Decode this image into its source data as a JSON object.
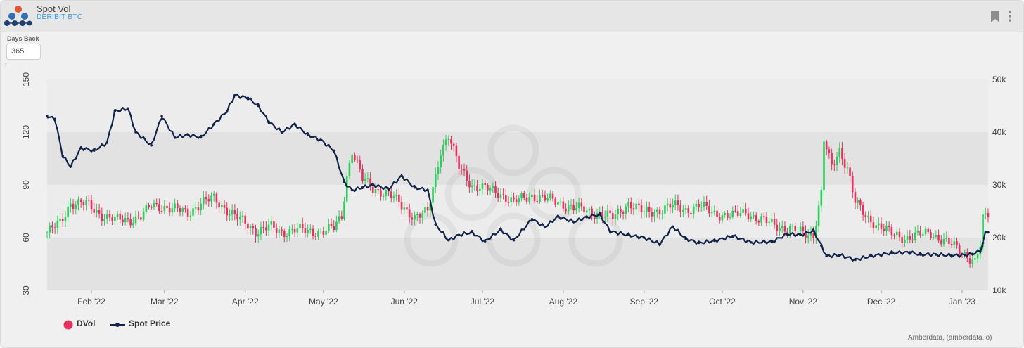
{
  "header": {
    "title": "Spot Vol",
    "subtitle": "DERIBIT BTC"
  },
  "params": {
    "days_back_label": "Days Back",
    "days_back_value": "365"
  },
  "legend": {
    "dvol_label": "DVol",
    "spot_label": "Spot Price"
  },
  "credit": "Amberdata, (amberdata.io)",
  "colors": {
    "up": "#2ecc5a",
    "down": "#e8305e",
    "spot": "#13244a",
    "band": "#e2e2e2",
    "plot_bg": "#ececec"
  },
  "chart_data": {
    "type": "line",
    "left_axis": {
      "ticks": [
        "30",
        "60",
        "90",
        "120",
        "150"
      ],
      "range": [
        30,
        150
      ],
      "series": "DVol"
    },
    "right_axis": {
      "ticks": [
        "10k",
        "20k",
        "30k",
        "40k",
        "50k"
      ],
      "range": [
        10000,
        50000
      ],
      "series": "Spot Price"
    },
    "x_axis": {
      "ticks": [
        "Feb '22",
        "Mar '22",
        "Apr '22",
        "May '22",
        "Jun '22",
        "Jul '22",
        "Aug '22",
        "Sep '22",
        "Oct '22",
        "Nov '22",
        "Dec '22",
        "Jan '23"
      ],
      "range": [
        "2022-01-15",
        "2023-01-11"
      ]
    },
    "series": [
      {
        "name": "Spot Price",
        "kind": "line",
        "points": [
          [
            "2022-01-15",
            43000
          ],
          [
            "2022-01-18",
            42500
          ],
          [
            "2022-01-21",
            35500
          ],
          [
            "2022-01-24",
            33500
          ],
          [
            "2022-01-28",
            37000
          ],
          [
            "2022-02-02",
            36500
          ],
          [
            "2022-02-07",
            38000
          ],
          [
            "2022-02-10",
            44000
          ],
          [
            "2022-02-15",
            44500
          ],
          [
            "2022-02-18",
            40000
          ],
          [
            "2022-02-24",
            37500
          ],
          [
            "2022-02-28",
            43000
          ],
          [
            "2022-03-05",
            39000
          ],
          [
            "2022-03-10",
            39500
          ],
          [
            "2022-03-15",
            39000
          ],
          [
            "2022-03-20",
            41500
          ],
          [
            "2022-03-25",
            44000
          ],
          [
            "2022-03-28",
            47000
          ],
          [
            "2022-04-02",
            46500
          ],
          [
            "2022-04-06",
            45000
          ],
          [
            "2022-04-10",
            42000
          ],
          [
            "2022-04-15",
            40000
          ],
          [
            "2022-04-20",
            41500
          ],
          [
            "2022-04-25",
            39500
          ],
          [
            "2022-04-30",
            38500
          ],
          [
            "2022-05-05",
            36500
          ],
          [
            "2022-05-09",
            30500
          ],
          [
            "2022-05-12",
            29000
          ],
          [
            "2022-05-16",
            29500
          ],
          [
            "2022-05-20",
            30000
          ],
          [
            "2022-05-26",
            29200
          ],
          [
            "2022-05-31",
            31700
          ],
          [
            "2022-06-05",
            29500
          ],
          [
            "2022-06-10",
            29000
          ],
          [
            "2022-06-13",
            22500
          ],
          [
            "2022-06-18",
            19500
          ],
          [
            "2022-06-22",
            20500
          ],
          [
            "2022-06-27",
            21000
          ],
          [
            "2022-07-02",
            19300
          ],
          [
            "2022-07-08",
            21500
          ],
          [
            "2022-07-13",
            19500
          ],
          [
            "2022-07-20",
            23500
          ],
          [
            "2022-07-25",
            22000
          ],
          [
            "2022-07-30",
            24000
          ],
          [
            "2022-08-05",
            23000
          ],
          [
            "2022-08-10",
            23900
          ],
          [
            "2022-08-15",
            24400
          ],
          [
            "2022-08-19",
            21200
          ],
          [
            "2022-08-26",
            20500
          ],
          [
            "2022-09-01",
            20000
          ],
          [
            "2022-09-07",
            18800
          ],
          [
            "2022-09-12",
            22100
          ],
          [
            "2022-09-17",
            19800
          ],
          [
            "2022-09-22",
            19000
          ],
          [
            "2022-09-28",
            19400
          ],
          [
            "2022-10-05",
            20300
          ],
          [
            "2022-10-12",
            19100
          ],
          [
            "2022-10-20",
            19200
          ],
          [
            "2022-10-26",
            20700
          ],
          [
            "2022-10-31",
            20500
          ],
          [
            "2022-11-05",
            21300
          ],
          [
            "2022-11-08",
            18500
          ],
          [
            "2022-11-10",
            16500
          ],
          [
            "2022-11-15",
            16700
          ],
          [
            "2022-11-21",
            15800
          ],
          [
            "2022-11-27",
            16500
          ],
          [
            "2022-12-05",
            17100
          ],
          [
            "2022-12-12",
            17200
          ],
          [
            "2022-12-16",
            16800
          ],
          [
            "2022-12-22",
            16800
          ],
          [
            "2022-12-28",
            16600
          ],
          [
            "2023-01-02",
            16700
          ],
          [
            "2023-01-05",
            16900
          ],
          [
            "2023-01-08",
            17500
          ],
          [
            "2023-01-09",
            19000
          ],
          [
            "2023-01-10",
            21000
          ],
          [
            "2023-01-11",
            21000
          ]
        ]
      },
      {
        "name": "DVol",
        "kind": "candlestick",
        "levels": [
          [
            "2022-01-15",
            63
          ],
          [
            "2022-01-20",
            68
          ],
          [
            "2022-01-24",
            80
          ],
          [
            "2022-01-30",
            79
          ],
          [
            "2022-02-05",
            73
          ],
          [
            "2022-02-10",
            70
          ],
          [
            "2022-02-15",
            70
          ],
          [
            "2022-02-20",
            72
          ],
          [
            "2022-02-24",
            78
          ],
          [
            "2022-02-28",
            78
          ],
          [
            "2022-03-05",
            76
          ],
          [
            "2022-03-10",
            74
          ],
          [
            "2022-03-15",
            80
          ],
          [
            "2022-03-20",
            82
          ],
          [
            "2022-03-25",
            76
          ],
          [
            "2022-03-30",
            70
          ],
          [
            "2022-04-05",
            64
          ],
          [
            "2022-04-10",
            66
          ],
          [
            "2022-04-15",
            63
          ],
          [
            "2022-04-20",
            65
          ],
          [
            "2022-04-25",
            63
          ],
          [
            "2022-04-30",
            64
          ],
          [
            "2022-05-05",
            65
          ],
          [
            "2022-05-08",
            72
          ],
          [
            "2022-05-10",
            95
          ],
          [
            "2022-05-12",
            110
          ],
          [
            "2022-05-16",
            93
          ],
          [
            "2022-05-20",
            88
          ],
          [
            "2022-05-26",
            85
          ],
          [
            "2022-05-31",
            78
          ],
          [
            "2022-06-05",
            72
          ],
          [
            "2022-06-10",
            74
          ],
          [
            "2022-06-13",
            95
          ],
          [
            "2022-06-15",
            110
          ],
          [
            "2022-06-18",
            118
          ],
          [
            "2022-06-22",
            100
          ],
          [
            "2022-06-27",
            90
          ],
          [
            "2022-07-02",
            88
          ],
          [
            "2022-07-08",
            85
          ],
          [
            "2022-07-13",
            80
          ],
          [
            "2022-07-20",
            84
          ],
          [
            "2022-07-25",
            82
          ],
          [
            "2022-07-30",
            80
          ],
          [
            "2022-08-05",
            77
          ],
          [
            "2022-08-10",
            75
          ],
          [
            "2022-08-15",
            74
          ],
          [
            "2022-08-20",
            71
          ],
          [
            "2022-08-26",
            80
          ],
          [
            "2022-09-01",
            74
          ],
          [
            "2022-09-07",
            76
          ],
          [
            "2022-09-12",
            78
          ],
          [
            "2022-09-17",
            76
          ],
          [
            "2022-09-22",
            78
          ],
          [
            "2022-09-28",
            74
          ],
          [
            "2022-10-05",
            72
          ],
          [
            "2022-10-10",
            75
          ],
          [
            "2022-10-15",
            70
          ],
          [
            "2022-10-20",
            68
          ],
          [
            "2022-10-26",
            65
          ],
          [
            "2022-10-31",
            63
          ],
          [
            "2022-11-05",
            62
          ],
          [
            "2022-11-08",
            85
          ],
          [
            "2022-11-09",
            115
          ],
          [
            "2022-11-12",
            100
          ],
          [
            "2022-11-15",
            110
          ],
          [
            "2022-11-18",
            100
          ],
          [
            "2022-11-21",
            80
          ],
          [
            "2022-11-25",
            72
          ],
          [
            "2022-12-01",
            66
          ],
          [
            "2022-12-05",
            62
          ],
          [
            "2022-12-10",
            60
          ],
          [
            "2022-12-15",
            61
          ],
          [
            "2022-12-20",
            63
          ],
          [
            "2022-12-25",
            58
          ],
          [
            "2022-12-30",
            54
          ],
          [
            "2023-01-03",
            50
          ],
          [
            "2023-01-06",
            46
          ],
          [
            "2023-01-08",
            55
          ],
          [
            "2023-01-09",
            70
          ],
          [
            "2023-01-11",
            73
          ]
        ]
      }
    ],
    "grid": "alternating horizontal bands",
    "legend": "bottom-left"
  }
}
